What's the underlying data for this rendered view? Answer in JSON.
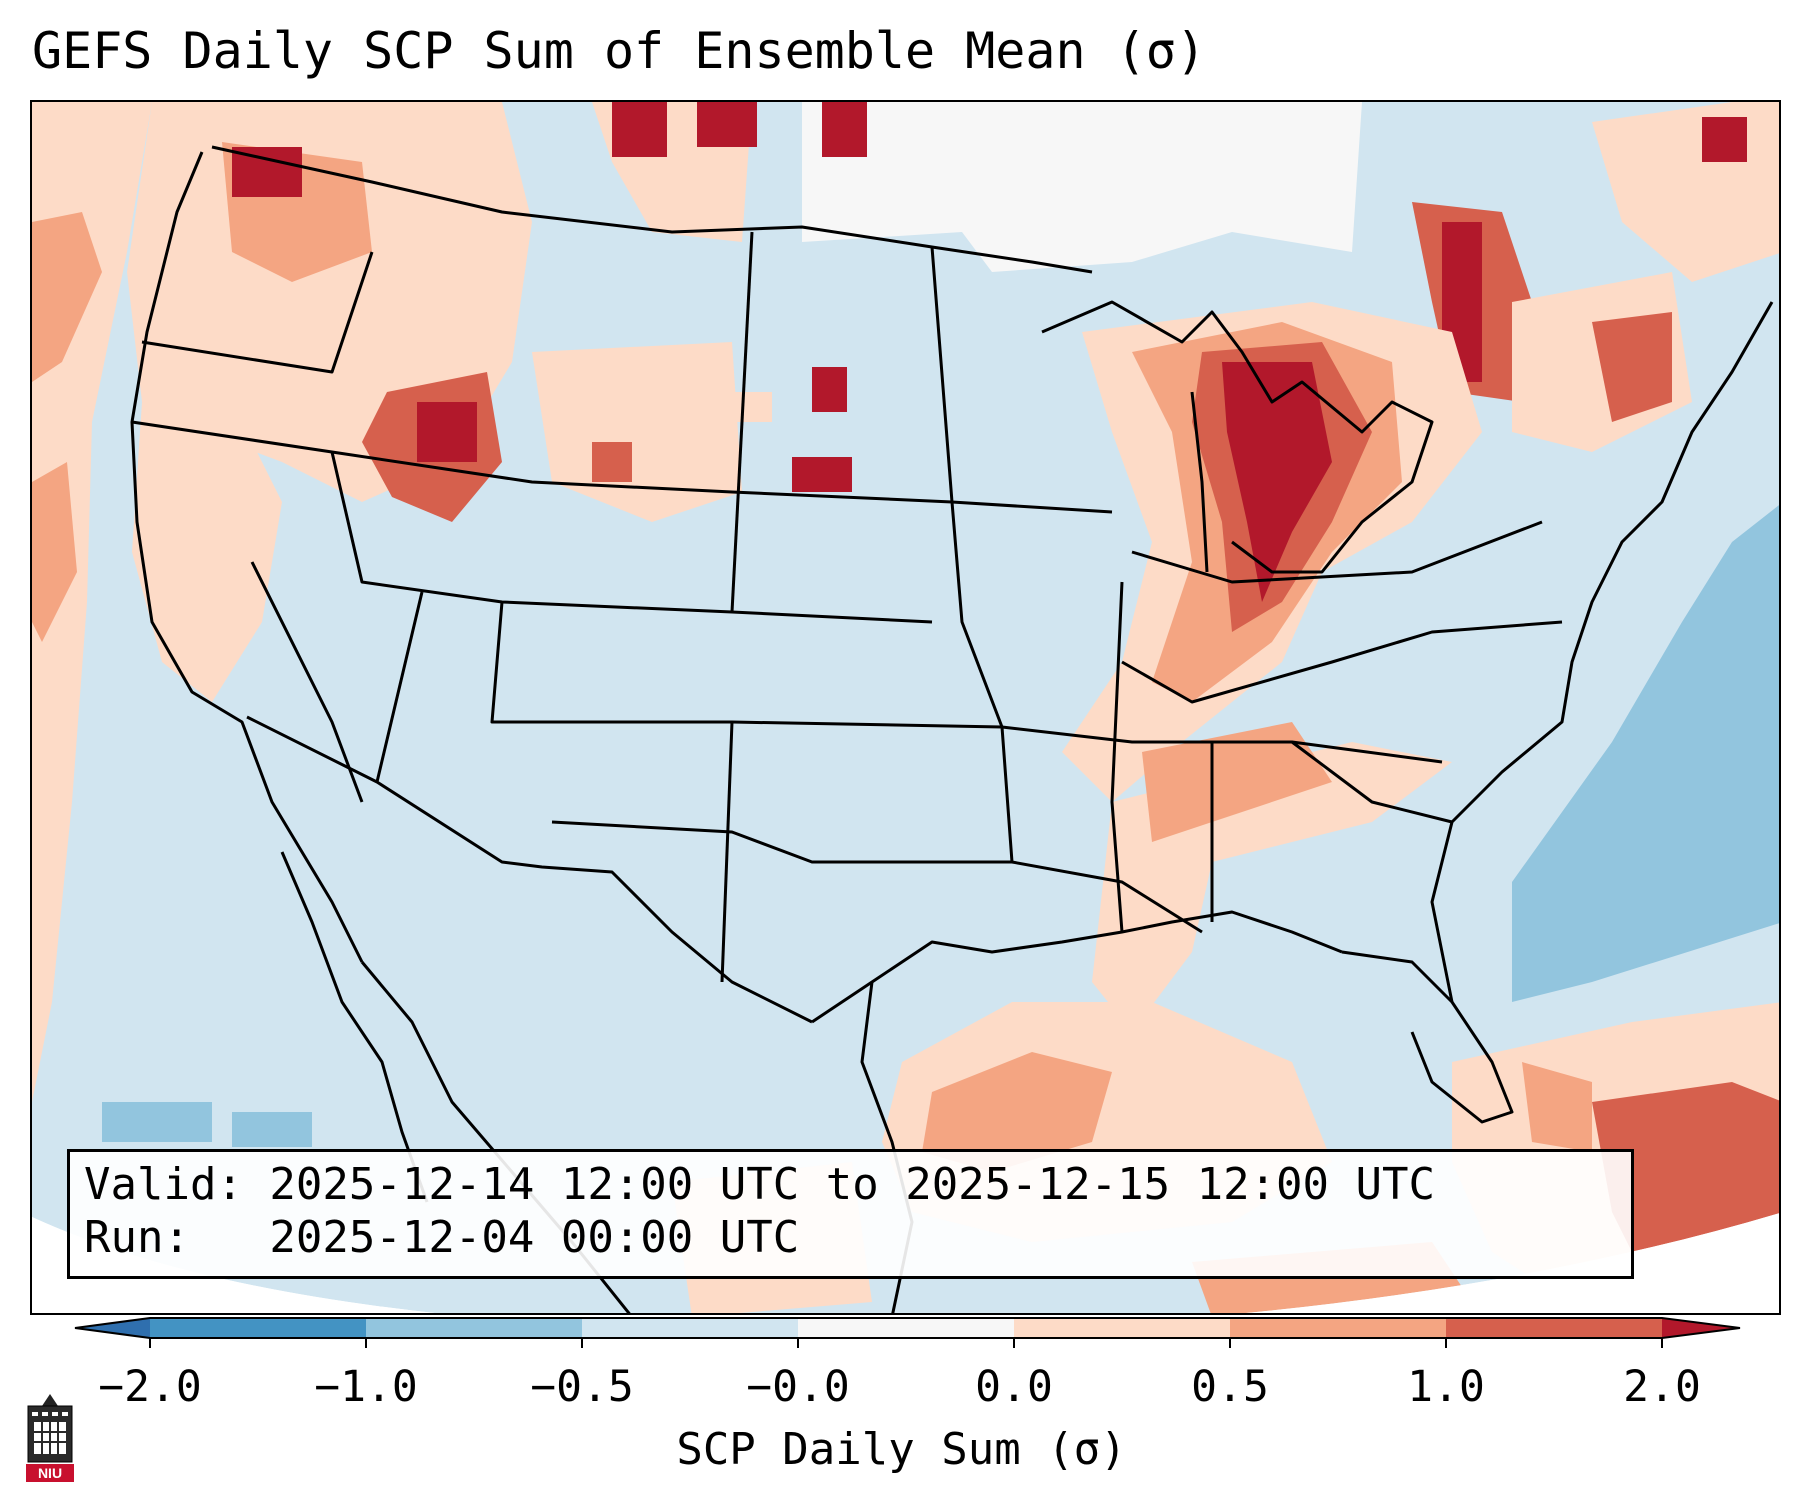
{
  "title": "GEFS Daily SCP Sum of Ensemble Mean (σ)",
  "info": {
    "valid_line": "Valid: 2025-12-14 12:00 UTC to 2025-12-15 12:00 UTC",
    "run_line": "Run:   2025-12-04 00:00 UTC"
  },
  "colorbar": {
    "label": "SCP Daily Sum (σ)",
    "ticks": [
      "−2.0",
      "−1.0",
      "−0.5",
      "−0.0",
      "0.0",
      "0.5",
      "1.0",
      "2.0"
    ],
    "bins": [
      {
        "range": "< -2.0",
        "color": "#2f6fae"
      },
      {
        "range": "-2.0 to -1.0",
        "color": "#4393c3"
      },
      {
        "range": "-1.0 to -0.5",
        "color": "#92c5de"
      },
      {
        "range": "-0.5 to -0.0",
        "color": "#d1e5f0"
      },
      {
        "range": "-0.0 to 0.0",
        "color": "#f7f7f7"
      },
      {
        "range": "0.0 to 0.5",
        "color": "#fddbc7"
      },
      {
        "range": "0.5 to 1.0",
        "color": "#f4a582"
      },
      {
        "range": "1.0 to 2.0",
        "color": "#d6604d"
      },
      {
        "range": "> 2.0",
        "color": "#b2182b"
      }
    ]
  },
  "logo": {
    "text": "NIU",
    "icon": "niu-tower-logo",
    "color": "#c8102e"
  }
}
